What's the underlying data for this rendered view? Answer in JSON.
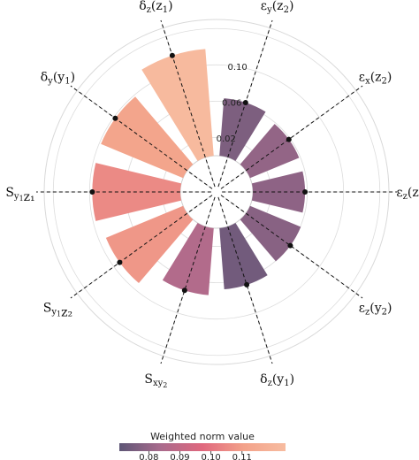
{
  "chart_data": {
    "type": "polar-bar",
    "title": "",
    "radial_ticks": [
      "0.02",
      "0.06",
      "0.10"
    ],
    "radial_tick_values": [
      0.02,
      0.06,
      0.1
    ],
    "rlim": [
      -0.04,
      0.15
    ],
    "grid": true,
    "categories": [
      {
        "label_tex": [
          "ε",
          "y",
          "(z",
          "2",
          ")"
        ],
        "value": 0.0635,
        "color_value": 0.076
      },
      {
        "label_tex": [
          "ε",
          "x",
          "(z",
          "2",
          ")"
        ],
        "value": 0.0585,
        "color_value": 0.08
      },
      {
        "label_tex": [
          "ε",
          "z",
          "(z",
          "1",
          ")"
        ],
        "value": 0.0575,
        "color_value": 0.079
      },
      {
        "label_tex": [
          "ε",
          "z",
          "(y",
          "2",
          ")"
        ],
        "value": 0.0605,
        "color_value": 0.078
      },
      {
        "label_tex": [
          "δ",
          "z",
          "(y",
          "1",
          ")"
        ],
        "value": 0.0675,
        "color_value": 0.074
      },
      {
        "label_tex": [
          "S",
          "xy",
          "",
          "2",
          ""
        ],
        "value": 0.074,
        "color_value": 0.086
      },
      {
        "label_tex": [
          "S",
          "y",
          "",
          "1",
          "z₂"
        ],
        "value": 0.092,
        "color_value": 0.108
      },
      {
        "label_tex": [
          "S",
          "y",
          "",
          "1",
          "z₁"
        ],
        "value": 0.097,
        "color_value": 0.105
      },
      {
        "label_tex": [
          "δ",
          "y",
          "(y",
          "1",
          ")"
        ],
        "value": 0.098,
        "color_value": 0.112
      },
      {
        "label_tex": [
          "δ",
          "z",
          "(z",
          "1",
          ")"
        ],
        "value": 0.118,
        "color_value": 0.123
      }
    ],
    "colorbar": {
      "title": "Weighted norm value",
      "ticks": [
        "0.08",
        "0.09",
        "0.10",
        "0.11"
      ],
      "tick_values": [
        0.08,
        0.09,
        0.1,
        0.11
      ],
      "range": [
        0.0705,
        0.124
      ],
      "colors": [
        "#5e5676",
        "#a96b8d",
        "#e0687e",
        "#f3a28a",
        "#f7bca0"
      ]
    }
  }
}
